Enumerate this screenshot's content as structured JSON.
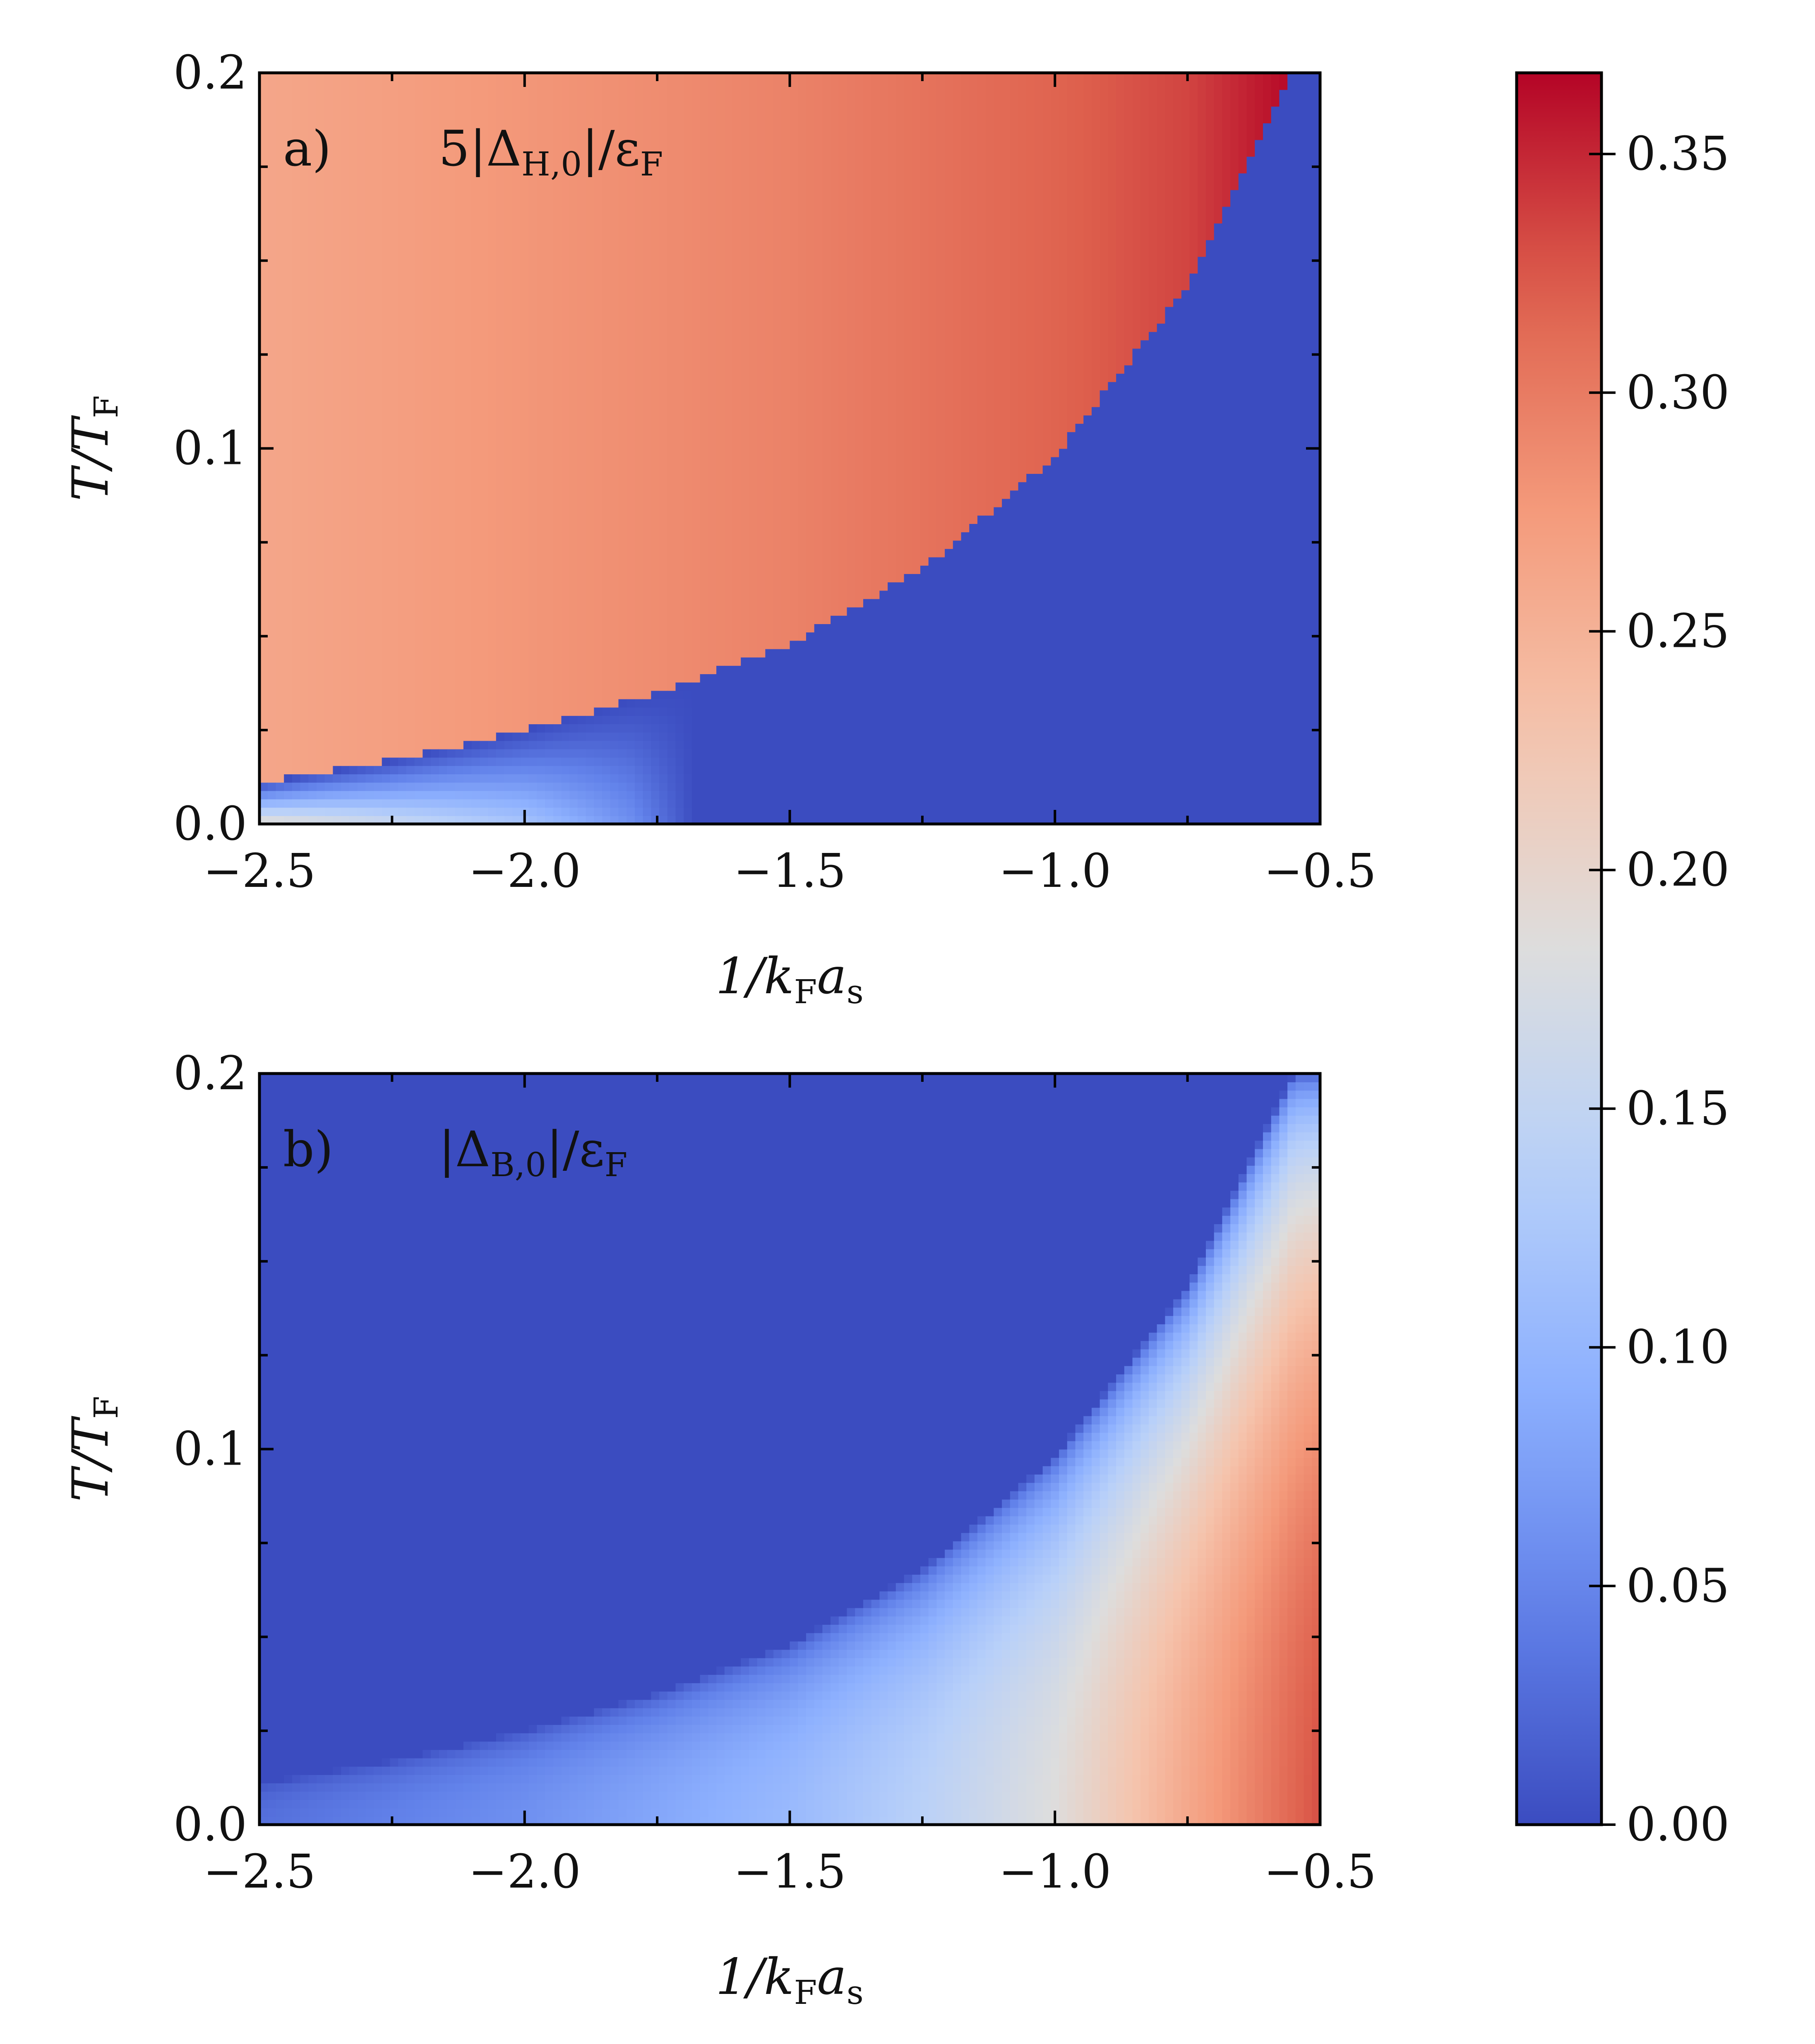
{
  "chart_data": [
    {
      "type": "heatmap",
      "panel_label": "a)",
      "quantity_label": "5|Δ_H,0|/ε_F",
      "quantity_parts": {
        "prefix": "5|Δ",
        "subscript": "H,0",
        "mid": "|/ε",
        "subscript2": "F"
      },
      "xlabel": "1/k_F a_s",
      "ylabel": "T/T_F",
      "xlim": [
        -2.5,
        -0.5
      ],
      "ylim": [
        0.0,
        0.2
      ],
      "xticks": [
        "−2.5",
        "−2.0",
        "−1.5",
        "−1.0",
        "−0.5"
      ],
      "yticks": [
        "0.0",
        "0.1",
        "0.2"
      ],
      "colormap": "coolwarm",
      "critical_curve": {
        "x": [
          -2.5,
          -2.25,
          -2.0,
          -1.75,
          -1.5,
          -1.25,
          -1.0,
          -0.75,
          -0.55
        ],
        "T": [
          0.011,
          0.017,
          0.025,
          0.035,
          0.048,
          0.068,
          0.098,
          0.143,
          0.2
        ]
      },
      "above_curve_values": {
        "x": [
          -2.5,
          -2.0,
          -1.5,
          -1.0,
          -0.75,
          -0.55
        ],
        "value": [
          0.262,
          0.278,
          0.294,
          0.318,
          0.335,
          0.366
        ]
      },
      "below_curve_values": {
        "x": [
          -2.5,
          -2.25,
          -2.0,
          -1.8,
          -1.68,
          -1.6,
          -0.5
        ],
        "value": [
          0.2,
          0.16,
          0.12,
          0.06,
          0.0,
          0.0,
          0.0
        ]
      }
    },
    {
      "type": "heatmap",
      "panel_label": "b)",
      "quantity_label": "|Δ_B,0|/ε_F",
      "quantity_parts": {
        "prefix": "|Δ",
        "subscript": "B,0",
        "mid": "|/ε",
        "subscript2": "F"
      },
      "xlabel": "1/k_F a_s",
      "ylabel": "T/T_F",
      "xlim": [
        -2.5,
        -0.5
      ],
      "ylim": [
        0.0,
        0.2
      ],
      "xticks": [
        "−2.5",
        "−2.0",
        "−1.5",
        "−1.0",
        "−0.5"
      ],
      "yticks": [
        "0.0",
        "0.1",
        "0.2"
      ],
      "colormap": "coolwarm",
      "critical_curve": {
        "x": [
          -2.5,
          -2.25,
          -2.0,
          -1.75,
          -1.5,
          -1.25,
          -1.0,
          -0.75,
          -0.55
        ],
        "T": [
          0.011,
          0.017,
          0.025,
          0.035,
          0.048,
          0.068,
          0.098,
          0.143,
          0.2
        ]
      },
      "zero_temperature_values": {
        "x": [
          -2.5,
          -2.0,
          -1.5,
          -1.25,
          -1.0,
          -0.75,
          -0.5
        ],
        "value": [
          0.03,
          0.06,
          0.105,
          0.14,
          0.185,
          0.26,
          0.33
        ]
      }
    }
  ],
  "colorbar": {
    "range": [
      0.0,
      0.367
    ],
    "ticks": [
      "0.00",
      "0.05",
      "0.10",
      "0.15",
      "0.20",
      "0.25",
      "0.30",
      "0.35"
    ]
  },
  "axis_text": {
    "xlabel_main": "1/k",
    "xlabel_sub1": "F",
    "xlabel_a": "a",
    "xlabel_sub2": "s",
    "ylabel_main": "T/T",
    "ylabel_sub": "F"
  }
}
